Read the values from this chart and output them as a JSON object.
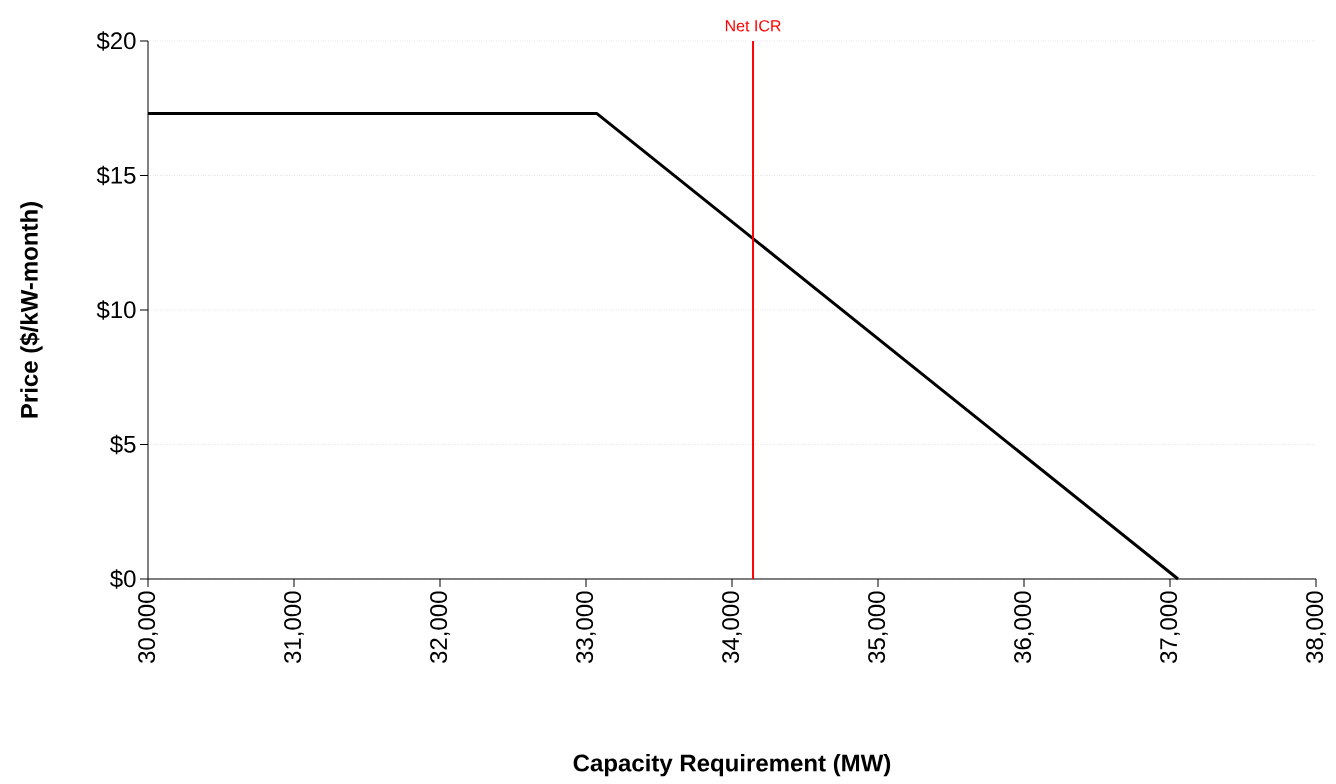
{
  "chart_data": {
    "type": "line",
    "xlabel": "Capacity Requirement (MW)",
    "ylabel": "Price ($/kW-month)",
    "x": [
      30000,
      33075,
      37055
    ],
    "series": [
      {
        "color": "#000000",
        "values": [
          17.3,
          17.3,
          0
        ]
      }
    ],
    "xlim": [
      30000,
      38000
    ],
    "xticks": [
      {
        "value": 30000,
        "label": "30,000"
      },
      {
        "value": 31000,
        "label": "31,000"
      },
      {
        "value": 32000,
        "label": "32,000"
      },
      {
        "value": 33000,
        "label": "33,000"
      },
      {
        "value": 34000,
        "label": "34,000"
      },
      {
        "value": 35000,
        "label": "35,000"
      },
      {
        "value": 36000,
        "label": "36,000"
      },
      {
        "value": 37000,
        "label": "37,000"
      },
      {
        "value": 38000,
        "label": "38,000"
      }
    ],
    "ylim": [
      0,
      20
    ],
    "yticks": [
      {
        "value": 0,
        "label": "$0"
      },
      {
        "value": 5,
        "label": "$5"
      },
      {
        "value": 10,
        "label": "$10"
      },
      {
        "value": 15,
        "label": "$15"
      },
      {
        "value": 20,
        "label": "$20"
      }
    ],
    "ref_lines": [
      {
        "axis": "x",
        "value": 34144,
        "label": "Net ICR",
        "color": "#ff0000",
        "line_style": "solid"
      }
    ],
    "grid": "y",
    "marker": "none",
    "line_style": "solid"
  }
}
